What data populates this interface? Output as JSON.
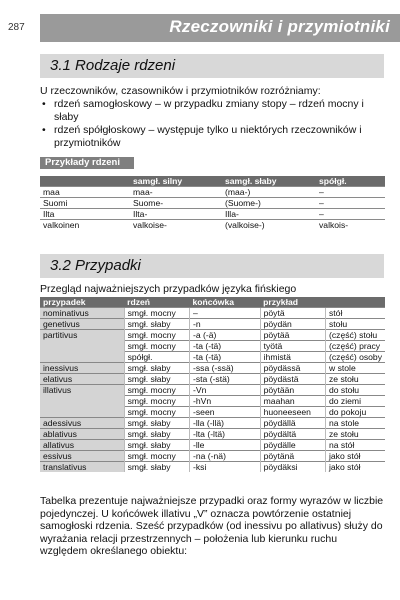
{
  "header": {
    "page_number": "287",
    "title": "Rzeczowniki i przymiotniki"
  },
  "section1": {
    "title": "3.1  Rodzaje rdzeni",
    "intro": "U rzeczowników, czasowników i przymiotników rozróżniamy:",
    "bullets": [
      "rdzeń samogłoskowy – w przypadku zmiany stopy – rdzeń mocny i słaby",
      "rdzeń spółgłoskowy – występuje tylko u niektórych rzeczowników i przymiotników"
    ],
    "examples_label": "Przykłady rdzeni",
    "table": {
      "headers": [
        "",
        "samgł. silny",
        "samgł. słaby",
        "spółgł."
      ],
      "rows": [
        [
          "maa",
          "maa-",
          "(maa-)",
          "–"
        ],
        [
          "Suomi",
          "Suome-",
          "(Suome-)",
          "–"
        ],
        [
          "Ilta",
          "Ilta-",
          "Illa-",
          "–"
        ],
        [
          "valkoinen",
          "valkoise-",
          "(valkoise-)",
          "valkois-"
        ]
      ]
    }
  },
  "section2": {
    "title": "3.2  Przypadki",
    "intro": "Przegląd najważniejszych przypadków języka fińskiego",
    "table": {
      "headers": [
        "przypadek",
        "rdzeń",
        "końcówka",
        "przykład",
        ""
      ],
      "rows": [
        [
          "nominativus",
          "smgł. mocny",
          "–",
          "pöytä",
          "stół"
        ],
        [
          "genetivus",
          "smgł. słaby",
          "-n",
          "pöydän",
          "stołu"
        ],
        [
          "partitivus",
          "smgł. mocny",
          "-a (-ä)",
          "pöytää",
          "(część) stołu"
        ],
        [
          "",
          "smgł. mocny",
          "-ta (-tä)",
          "työtä",
          "(część) pracy"
        ],
        [
          "",
          "spółgł.",
          "-ta (-tä)",
          "ihmistä",
          "(część) osoby"
        ],
        [
          "inessivus",
          "smgł. słaby",
          "-ssa (-ssä)",
          "pöydässä",
          "w stole"
        ],
        [
          "elativus",
          "smgł. słaby",
          "-sta (-stä)",
          "pöydästä",
          "ze stołu"
        ],
        [
          "illativus",
          "smgł. mocny",
          "-Vn",
          "pöytään",
          "do stołu"
        ],
        [
          "",
          "smgł. mocny",
          "-hVn",
          "maahan",
          "do ziemi"
        ],
        [
          "",
          "smgł. mocny",
          "-seen",
          "huoneeseen",
          "do pokoju"
        ],
        [
          "adessivus",
          "smgł. słaby",
          "-lla (-llä)",
          "pöydällä",
          "na stole"
        ],
        [
          "ablativus",
          "smgł. słaby",
          "-lta (-ltä)",
          "pöydältä",
          "ze stołu"
        ],
        [
          "allativus",
          "smgł. słaby",
          "-lle",
          "pöydälle",
          "na stół"
        ],
        [
          "essivus",
          "smgł. mocny",
          "-na (-nä)",
          "pöytänä",
          "jako stół"
        ],
        [
          "translativus",
          "smgł. słaby",
          "-ksi",
          "pöydäksi",
          "jako stół"
        ]
      ]
    },
    "paragraph": "Tabelka prezentuje najważniejsze przypadki oraz formy wyrazów w liczbie pojedynczej. U końcówek illativu „V” oznacza powtórzenie ostatniej samogłoski rdzenia. Sześć przypadków (od inessivu po allativus) służy do wyrażania relacji przestrzennych – położenia lub kierunku ruchu względem określanego obiektu:"
  }
}
